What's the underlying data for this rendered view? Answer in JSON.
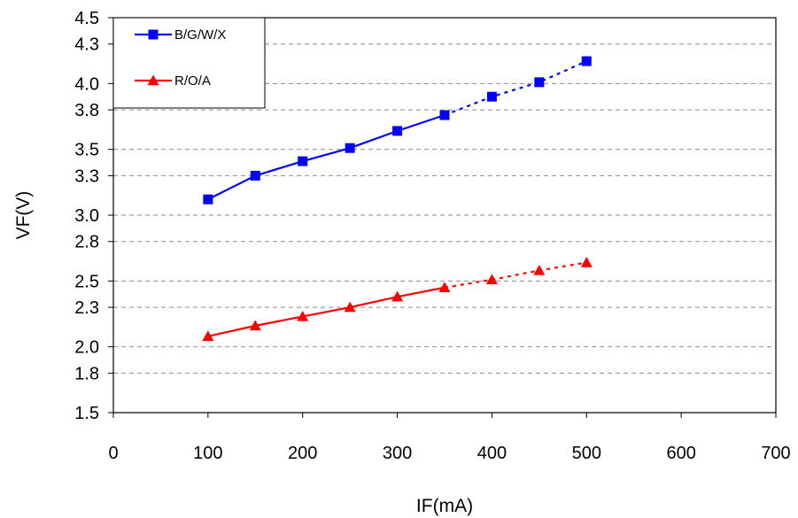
{
  "chart_data": {
    "type": "line",
    "xlabel": "IF(mA)",
    "ylabel": "VF(V)",
    "xlim": [
      0,
      700
    ],
    "ylim": [
      1.5,
      4.5
    ],
    "x_ticks": [
      "0",
      "100",
      "200",
      "300",
      "400",
      "500",
      "600",
      "700"
    ],
    "y_ticks": [
      "1.5",
      "1.8",
      "2.0",
      "2.3",
      "2.5",
      "2.8",
      "3.0",
      "3.3",
      "3.5",
      "3.8",
      "4.0",
      "4.3",
      "4.5"
    ],
    "grid": "horizontal dashed",
    "legend_position": "top-left",
    "series": [
      {
        "name": "B/G/W/X",
        "color": "#0000ff",
        "marker": "square",
        "x": [
          100,
          150,
          200,
          250,
          300,
          350,
          400,
          450,
          500
        ],
        "y": [
          3.12,
          3.3,
          3.41,
          3.51,
          3.64,
          3.76,
          3.9,
          4.01,
          4.17
        ],
        "solid_until_index": 5,
        "dashed_after": true
      },
      {
        "name": "R/O/A",
        "color": "#ff0000",
        "marker": "triangle",
        "x": [
          100,
          150,
          200,
          250,
          300,
          350,
          400,
          450,
          500
        ],
        "y": [
          2.08,
          2.16,
          2.23,
          2.3,
          2.38,
          2.45,
          2.51,
          2.58,
          2.64
        ],
        "solid_until_index": 5,
        "dashed_after": true
      }
    ]
  }
}
